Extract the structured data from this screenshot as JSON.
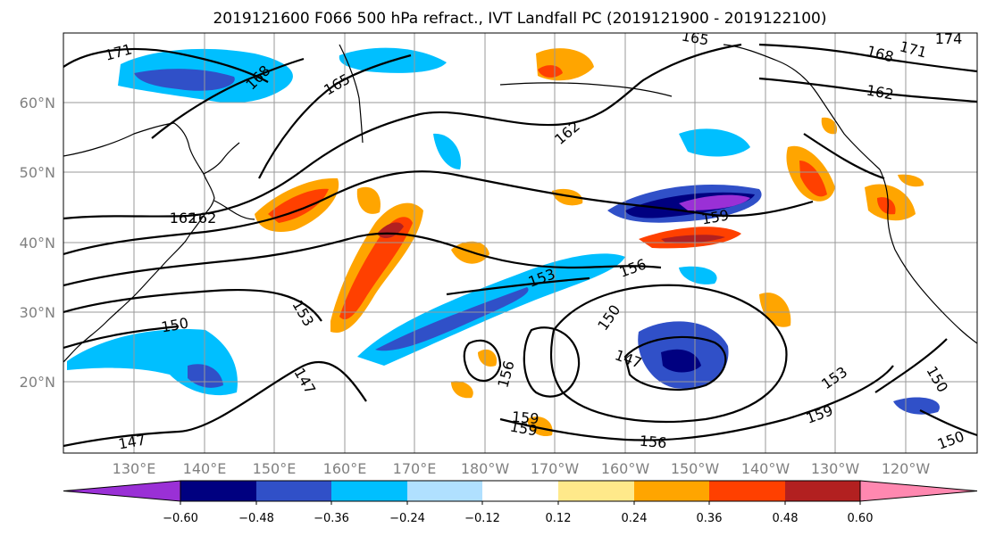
{
  "title": "2019121600 F066 500 hPa refract., IVT Landfall PC (2019121900 - 2019122100)",
  "colors": {
    "contour": "#000000",
    "coast": "#000000",
    "grid": "#999999",
    "tick_text": "#808080",
    "negative": [
      "#9a30d6",
      "#000080",
      "#3050c8",
      "#00bfff",
      "#b0e0ff"
    ],
    "neutral": "#ffffff",
    "positive": [
      "#ffe98a",
      "#ffa500",
      "#ff4000",
      "#b22020",
      "#ff88b0"
    ]
  },
  "map": {
    "projection": "PlateCarree",
    "lon_ticks": [
      "130°E",
      "140°E",
      "150°E",
      "160°E",
      "170°E",
      "180°W",
      "170°W",
      "160°W",
      "150°W",
      "140°W",
      "130°W",
      "120°W"
    ],
    "lat_ticks": [
      "60°N",
      "50°N",
      "40°N",
      "30°N",
      "20°N"
    ],
    "grid": true
  },
  "colorbar": {
    "orientation": "horizontal",
    "extend": "both",
    "tick_labels": [
      "−0.60",
      "−0.48",
      "−0.36",
      "−0.24",
      "−0.12",
      "0.12",
      "0.24",
      "0.36",
      "0.48",
      "0.60"
    ]
  },
  "contour_labels": [
    "171",
    "168",
    "165",
    "165",
    "162",
    "162",
    "168",
    "171",
    "174",
    "162",
    "159",
    "153",
    "156",
    "150",
    "153",
    "150",
    "147",
    "147",
    "156",
    "159",
    "153",
    "150",
    "159",
    "150",
    "147",
    "156",
    "159",
    "162"
  ]
}
